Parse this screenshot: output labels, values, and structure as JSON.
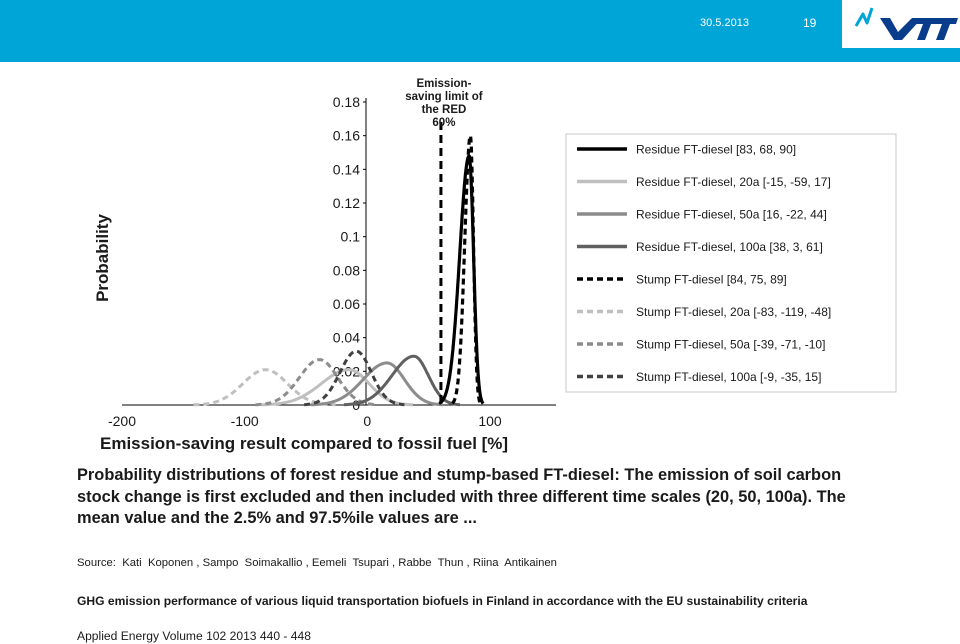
{
  "slide": {
    "date": "30.5.2013",
    "page_number": "19",
    "brand": {
      "name": "VTT",
      "color": "#0a3c8c",
      "header_color": "#00a5d8"
    }
  },
  "chart_data": {
    "type": "line",
    "title": "",
    "xlabel": "Emission-saving result compared to fossil fuel [%]",
    "ylabel": "Probability",
    "xlim": [
      -200,
      150
    ],
    "ylim": [
      0,
      0.18
    ],
    "x_ticks": [
      -200,
      -100,
      0,
      100
    ],
    "y_ticks": [
      0,
      0.02,
      0.04,
      0.06,
      0.08,
      0.1,
      0.12,
      0.14,
      0.16,
      0.18
    ],
    "grid": false,
    "legend_position": "right",
    "reference_line": {
      "x": 60,
      "label_lines": [
        "Emission-",
        "saving limit of",
        "the RED",
        "60%"
      ]
    },
    "series": [
      {
        "name": "Residue FT-diesel [83, 68, 90]",
        "mean": 83,
        "p2_5": 68,
        "p97_5": 90,
        "peak": 0.148,
        "color": "#000000",
        "dash": "solid"
      },
      {
        "name": "Residue FT-diesel, 20a [-15, -59, 17]",
        "mean": -15,
        "p2_5": -59,
        "p97_5": 17,
        "peak": 0.021,
        "color": "#bfbfbf",
        "dash": "solid"
      },
      {
        "name": "Residue FT-diesel, 50a [16, -22, 44]",
        "mean": 16,
        "p2_5": -22,
        "p97_5": 44,
        "peak": 0.025,
        "color": "#8c8c8c",
        "dash": "solid"
      },
      {
        "name": "Residue FT-diesel, 100a [38, 3, 61]",
        "mean": 38,
        "p2_5": 3,
        "p97_5": 61,
        "peak": 0.029,
        "color": "#606060",
        "dash": "solid"
      },
      {
        "name": "Stump FT-diesel [84, 75, 89]",
        "mean": 84,
        "p2_5": 75,
        "p97_5": 89,
        "peak": 0.16,
        "color": "#000000",
        "dash": "dashed"
      },
      {
        "name": "Stump FT-diesel, 20a [-83, -119, -48]",
        "mean": -83,
        "p2_5": -119,
        "p97_5": -48,
        "peak": 0.021,
        "color": "#bfbfbf",
        "dash": "dashed"
      },
      {
        "name": "Stump FT-diesel, 50a [-39, -71, -10]",
        "mean": -39,
        "p2_5": -71,
        "p97_5": -10,
        "peak": 0.027,
        "color": "#8c8c8c",
        "dash": "dashed"
      },
      {
        "name": "Stump FT-diesel, 100a [-9, -35, 15]",
        "mean": -9,
        "p2_5": -35,
        "p97_5": 15,
        "peak": 0.032,
        "color": "#404040",
        "dash": "dashed"
      }
    ]
  },
  "caption": "Probability distributions of forest residue and stump-based FT-diesel: The emission of soil carbon stock change is first excluded and then included with three different time scales (20, 50, 100a). The mean value and the 2.5% and 97.5%ile values are ...",
  "source": "Source:  Kati  Koponen , Sampo  Soimakallio , Eemeli  Tsupari , Rabbe  Thun , Riina  Antikainen",
  "paper_title": "GHG emission performance of various liquid transportation biofuels in Finland in accordance with the EU sustainability criteria",
  "journal": "Applied Energy Volume 102 2013 440 - 448"
}
